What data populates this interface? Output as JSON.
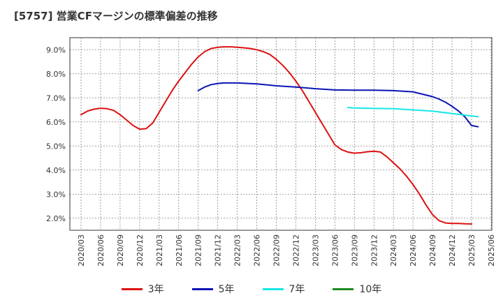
{
  "header": {
    "title": "[5757]  営業CFマージンの標準偏差の推移"
  },
  "chart_data": {
    "type": "line",
    "title": "[5757]  営業CFマージンの標準偏差の推移",
    "xlabel": "",
    "ylabel": "",
    "x_ticks": [
      "2020/03",
      "2020/06",
      "2020/09",
      "2020/12",
      "2021/03",
      "2021/06",
      "2021/09",
      "2021/12",
      "2022/03",
      "2022/06",
      "2022/09",
      "2022/12",
      "2023/03",
      "2023/06",
      "2023/09",
      "2023/12",
      "2024/03",
      "2024/06",
      "2024/09",
      "2024/12",
      "2025/03",
      "2025/06"
    ],
    "y_ticks": [
      "2.0%",
      "3.0%",
      "4.0%",
      "5.0%",
      "6.0%",
      "7.0%",
      "8.0%",
      "9.0%"
    ],
    "ylim": [
      1.5,
      9.5
    ],
    "grid": true,
    "legend_position": "bottom",
    "series": [
      {
        "name": "3年",
        "color": "#dd1111",
        "points": [
          [
            "2020/03",
            6.3
          ],
          [
            "2020/04",
            6.45
          ],
          [
            "2020/05",
            6.53
          ],
          [
            "2020/06",
            6.57
          ],
          [
            "2020/07",
            6.55
          ],
          [
            "2020/08",
            6.48
          ],
          [
            "2020/09",
            6.3
          ],
          [
            "2020/10",
            6.08
          ],
          [
            "2020/11",
            5.85
          ],
          [
            "2020/12",
            5.7
          ],
          [
            "2021/01",
            5.72
          ],
          [
            "2021/02",
            5.95
          ],
          [
            "2021/03",
            6.4
          ],
          [
            "2021/04",
            6.85
          ],
          [
            "2021/05",
            7.3
          ],
          [
            "2021/06",
            7.7
          ],
          [
            "2021/07",
            8.05
          ],
          [
            "2021/08",
            8.4
          ],
          [
            "2021/09",
            8.7
          ],
          [
            "2021/10",
            8.92
          ],
          [
            "2021/11",
            9.05
          ],
          [
            "2021/12",
            9.1
          ],
          [
            "2022/01",
            9.12
          ],
          [
            "2022/02",
            9.12
          ],
          [
            "2022/03",
            9.1
          ],
          [
            "2022/04",
            9.08
          ],
          [
            "2022/05",
            9.05
          ],
          [
            "2022/06",
            9.0
          ],
          [
            "2022/07",
            8.92
          ],
          [
            "2022/08",
            8.8
          ],
          [
            "2022/09",
            8.6
          ],
          [
            "2022/10",
            8.35
          ],
          [
            "2022/11",
            8.05
          ],
          [
            "2022/12",
            7.7
          ],
          [
            "2023/01",
            7.3
          ],
          [
            "2023/02",
            6.85
          ],
          [
            "2023/03",
            6.4
          ],
          [
            "2023/04",
            5.95
          ],
          [
            "2023/05",
            5.5
          ],
          [
            "2023/06",
            5.05
          ],
          [
            "2023/07",
            4.85
          ],
          [
            "2023/08",
            4.75
          ],
          [
            "2023/09",
            4.7
          ],
          [
            "2023/10",
            4.72
          ],
          [
            "2023/11",
            4.76
          ],
          [
            "2023/12",
            4.78
          ],
          [
            "2024/01",
            4.75
          ],
          [
            "2024/02",
            4.55
          ],
          [
            "2024/03",
            4.3
          ],
          [
            "2024/04",
            4.05
          ],
          [
            "2024/05",
            3.75
          ],
          [
            "2024/06",
            3.4
          ],
          [
            "2024/07",
            3.0
          ],
          [
            "2024/08",
            2.55
          ],
          [
            "2024/09",
            2.15
          ],
          [
            "2024/10",
            1.9
          ],
          [
            "2024/11",
            1.8
          ],
          [
            "2024/12",
            1.78
          ],
          [
            "2025/01",
            1.78
          ],
          [
            "2025/02",
            1.77
          ],
          [
            "2025/03",
            1.76
          ]
        ]
      },
      {
        "name": "5年",
        "color": "#0a14b4",
        "points": [
          [
            "2021/09",
            7.3
          ],
          [
            "2021/10",
            7.45
          ],
          [
            "2021/11",
            7.55
          ],
          [
            "2021/12",
            7.6
          ],
          [
            "2022/01",
            7.62
          ],
          [
            "2022/03",
            7.62
          ],
          [
            "2022/06",
            7.58
          ],
          [
            "2022/09",
            7.5
          ],
          [
            "2022/12",
            7.45
          ],
          [
            "2023/03",
            7.38
          ],
          [
            "2023/06",
            7.33
          ],
          [
            "2023/09",
            7.32
          ],
          [
            "2023/12",
            7.32
          ],
          [
            "2024/03",
            7.3
          ],
          [
            "2024/06",
            7.25
          ],
          [
            "2024/09",
            7.05
          ],
          [
            "2024/10",
            6.95
          ],
          [
            "2024/11",
            6.82
          ],
          [
            "2024/12",
            6.65
          ],
          [
            "2025/01",
            6.45
          ],
          [
            "2025/02",
            6.2
          ],
          [
            "2025/03",
            5.85
          ],
          [
            "2025/04",
            5.8
          ]
        ]
      },
      {
        "name": "7年",
        "color": "#1ae6e6",
        "points": [
          [
            "2023/08",
            6.6
          ],
          [
            "2023/09",
            6.58
          ],
          [
            "2023/12",
            6.56
          ],
          [
            "2024/03",
            6.55
          ],
          [
            "2024/06",
            6.5
          ],
          [
            "2024/09",
            6.45
          ],
          [
            "2024/12",
            6.35
          ],
          [
            "2025/03",
            6.25
          ],
          [
            "2025/04",
            6.22
          ]
        ]
      },
      {
        "name": "10年",
        "color": "#1f8a1f",
        "points": []
      }
    ]
  }
}
